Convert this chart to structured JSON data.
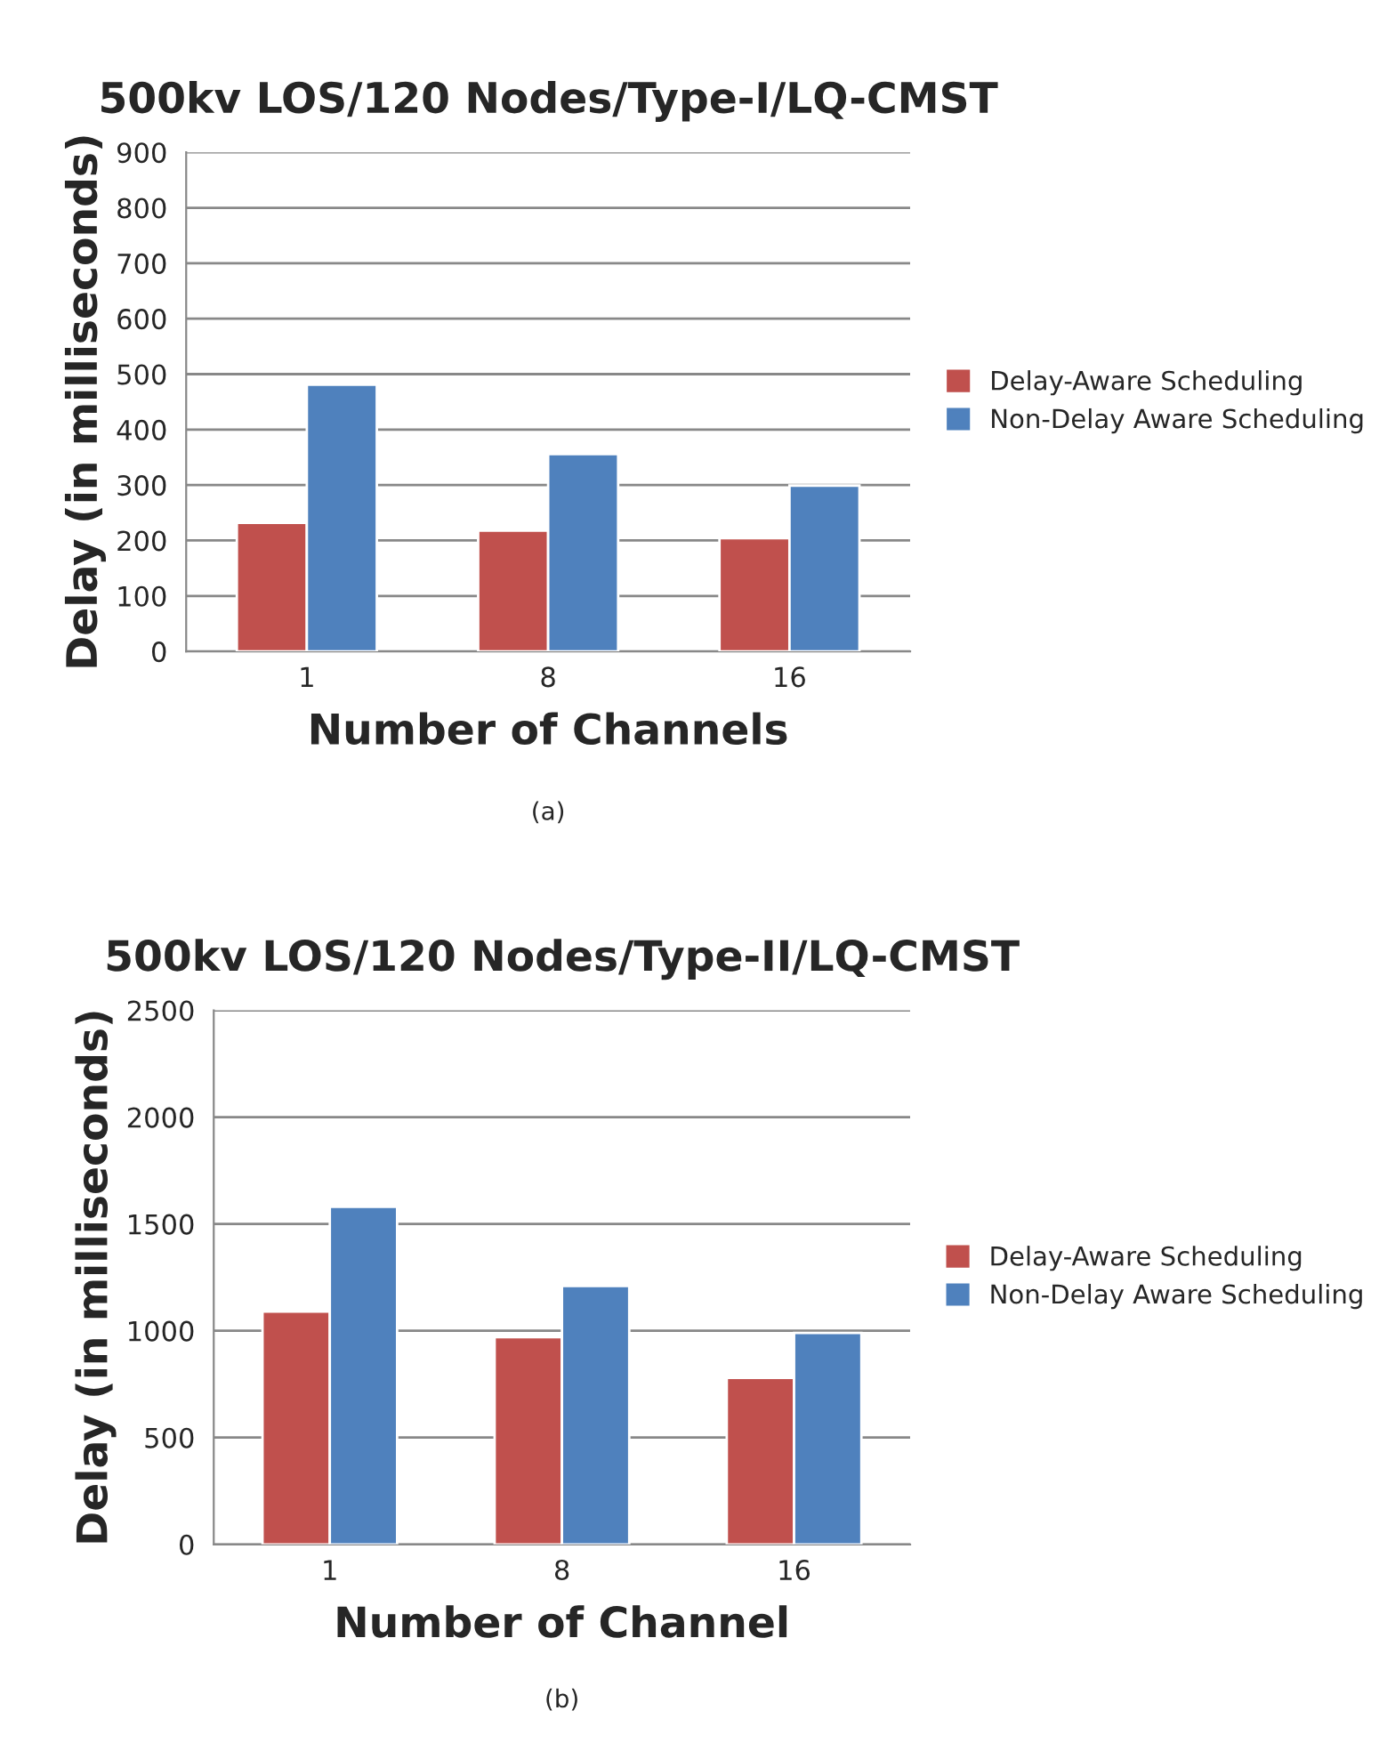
{
  "chart_data": [
    {
      "type": "bar",
      "title": "500kv LOS/120 Nodes/Type-I/LQ-CMST",
      "xlabel": "Number of Channels",
      "ylabel": "Delay (in milliseconds)",
      "categories": [
        "1",
        "8",
        "16"
      ],
      "series": [
        {
          "name": "Delay-Aware Scheduling",
          "color": "#c0504d",
          "values": [
            232,
            218,
            204
          ]
        },
        {
          "name": "Non-Delay Aware Scheduling",
          "color": "#4f81bd",
          "values": [
            481,
            356,
            299
          ]
        }
      ],
      "ylim": [
        0,
        900
      ],
      "yticks": [
        0,
        100,
        200,
        300,
        400,
        500,
        600,
        700,
        800,
        900
      ],
      "grid": "y",
      "legend": "right",
      "annotations": [
        "(a)"
      ]
    },
    {
      "type": "bar",
      "title": "500kv LOS/120 Nodes/Type-II/LQ-CMST",
      "xlabel": "Number of Channel",
      "ylabel": "Delay (in milliseconds)",
      "categories": [
        "1",
        "8",
        "16"
      ],
      "series": [
        {
          "name": "Delay-Aware Scheduling",
          "color": "#c0504d",
          "values": [
            1090,
            970,
            780
          ]
        },
        {
          "name": "Non-Delay Aware Scheduling",
          "color": "#4f81bd",
          "values": [
            1580,
            1210,
            990
          ]
        }
      ],
      "ylim": [
        0,
        2500
      ],
      "yticks": [
        0,
        500,
        1000,
        1500,
        2000,
        2500
      ],
      "grid": "y",
      "legend": "right",
      "annotations": [
        "(b)"
      ]
    }
  ]
}
